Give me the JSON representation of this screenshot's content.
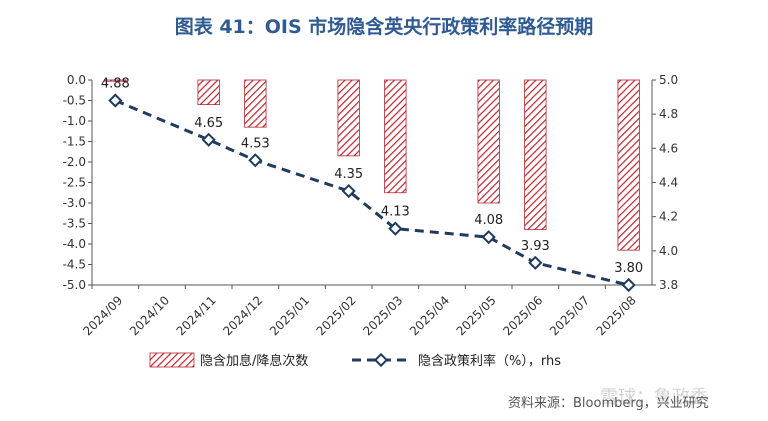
{
  "title": "图表 41：OIS 市场隐含英央行政策利率路径预期",
  "source": "资料来源：Bloomberg，兴业研究",
  "watermark": "雪球：鲁政委",
  "colors": {
    "bar": "#b8252f",
    "line": "#1f3b5e",
    "title": "#2f5b92"
  },
  "chart_data": {
    "type": "bar+line",
    "categories": [
      "2024/09",
      "2024/10",
      "2024/11",
      "2024/12",
      "2025/01",
      "2025/02",
      "2025/03",
      "2025/04",
      "2025/05",
      "2025/06",
      "2025/07",
      "2025/08"
    ],
    "y_left": {
      "min": -5.0,
      "max": 0.0,
      "step": 0.5,
      "ticks": [
        "0.0",
        "-0.5",
        "-1.0",
        "-1.5",
        "-2.0",
        "-2.5",
        "-3.0",
        "-3.5",
        "-4.0",
        "-4.5",
        "-5.0"
      ]
    },
    "y_right": {
      "min": 3.8,
      "max": 5.0,
      "step": 0.2,
      "ticks": [
        "5.0",
        "4.8",
        "4.6",
        "4.4",
        "4.2",
        "4.0",
        "3.8"
      ]
    },
    "series": [
      {
        "name": "隐含加息/降息次数",
        "kind": "bar",
        "axis": "left",
        "points": [
          {
            "x": 0.0,
            "y": -0.03
          },
          {
            "x": 2.0,
            "y": -0.6
          },
          {
            "x": 3.0,
            "y": -1.15
          },
          {
            "x": 5.0,
            "y": -1.85
          },
          {
            "x": 6.0,
            "y": -2.75
          },
          {
            "x": 8.0,
            "y": -3.0
          },
          {
            "x": 9.0,
            "y": -3.65
          },
          {
            "x": 11.0,
            "y": -4.15
          }
        ]
      },
      {
        "name": "隐含政策利率（%），rhs",
        "kind": "line",
        "axis": "right",
        "points": [
          {
            "x": 0.0,
            "y": 4.88,
            "label": "4.88"
          },
          {
            "x": 2.0,
            "y": 4.65,
            "label": "4.65"
          },
          {
            "x": 3.0,
            "y": 4.53,
            "label": "4.53"
          },
          {
            "x": 5.0,
            "y": 4.35,
            "label": "4.35"
          },
          {
            "x": 6.0,
            "y": 4.13,
            "label": "4.13"
          },
          {
            "x": 8.0,
            "y": 4.08,
            "label": "4.08"
          },
          {
            "x": 9.0,
            "y": 3.93,
            "label": "3.93"
          },
          {
            "x": 11.0,
            "y": 3.8,
            "label": "3.80"
          }
        ]
      }
    ],
    "legend": {
      "position": "bottom",
      "items": [
        "隐含加息/降息次数",
        "隐含政策利率（%），rhs"
      ]
    }
  }
}
